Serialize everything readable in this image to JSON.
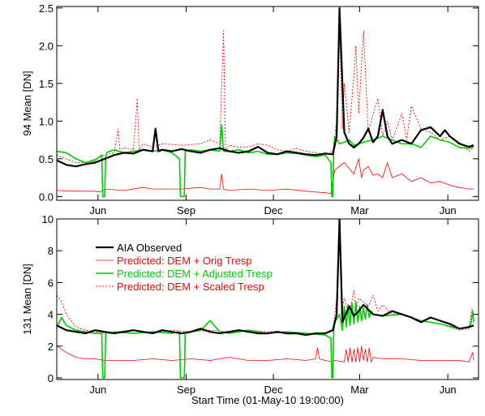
{
  "figure": {
    "xlabel": "Start Time (01-May-10 19:00:00)"
  },
  "chart_data": [
    {
      "type": "line",
      "ylabel": "94 Mean [DN]",
      "ylim": [
        -0.05,
        2.52
      ],
      "yticks": [
        0.0,
        0.5,
        1.0,
        1.5,
        2.0,
        2.5
      ],
      "ytick_labels": [
        "0.0",
        "0.5",
        "1.0",
        "1.5",
        "2.0",
        "2.5"
      ],
      "xlim": [
        0,
        440
      ],
      "xticks": [
        {
          "label": "Jun",
          "x": 43
        },
        {
          "label": "Sep",
          "x": 135
        },
        {
          "label": "Dec",
          "x": 226
        },
        {
          "label": "Mar",
          "x": 316
        },
        {
          "label": "Jun",
          "x": 408
        }
      ],
      "series": [
        {
          "name": "AIA Observed",
          "color": "#000000",
          "dash": "solid",
          "width": 2.2,
          "x": [
            0,
            10,
            20,
            30,
            40,
            50,
            60,
            70,
            80,
            90,
            100,
            103,
            106,
            110,
            120,
            130,
            140,
            150,
            160,
            170,
            180,
            190,
            200,
            210,
            220,
            230,
            240,
            250,
            260,
            270,
            280,
            288,
            292,
            295,
            300,
            305,
            310,
            315,
            320,
            325,
            330,
            335,
            340,
            345,
            350,
            360,
            370,
            380,
            390,
            400,
            405,
            410,
            420,
            430,
            435
          ],
          "y": [
            0.48,
            0.42,
            0.4,
            0.43,
            0.45,
            0.5,
            0.55,
            0.58,
            0.57,
            0.62,
            0.6,
            0.9,
            0.6,
            0.62,
            0.6,
            0.63,
            0.6,
            0.58,
            0.62,
            0.64,
            0.6,
            0.58,
            0.6,
            0.66,
            0.58,
            0.56,
            0.6,
            0.58,
            0.56,
            0.55,
            0.57,
            0.56,
            0.8,
            2.5,
            0.85,
            0.7,
            0.65,
            0.7,
            0.78,
            0.9,
            0.72,
            0.8,
            1.15,
            0.8,
            0.7,
            0.75,
            0.7,
            0.88,
            0.92,
            0.8,
            0.88,
            0.8,
            0.7,
            0.66,
            0.68
          ]
        },
        {
          "name": "Predicted: DEM + Orig Tresp",
          "color": "#ff0000",
          "dash": "solid",
          "width": 0.8,
          "x": [
            0,
            20,
            40,
            45,
            50,
            70,
            90,
            100,
            110,
            130,
            150,
            160,
            170,
            172,
            174,
            180,
            200,
            220,
            240,
            260,
            280,
            286,
            290,
            300,
            310,
            315,
            318,
            320,
            325,
            330,
            335,
            340,
            345,
            350,
            360,
            370,
            380,
            390,
            400,
            410,
            420,
            430,
            435
          ],
          "y": [
            0.08,
            0.07,
            0.07,
            0.06,
            0.1,
            0.08,
            0.12,
            0.1,
            0.1,
            0.1,
            0.12,
            0.1,
            0.1,
            0.3,
            0.1,
            0.08,
            0.1,
            0.08,
            0.1,
            0.07,
            0.05,
            0.04,
            0.35,
            0.45,
            0.3,
            0.5,
            0.25,
            0.35,
            0.4,
            0.28,
            0.3,
            0.25,
            0.45,
            0.25,
            0.3,
            0.2,
            0.25,
            0.18,
            0.2,
            0.15,
            0.12,
            0.1,
            0.1
          ]
        },
        {
          "name": "Predicted: DEM + Adjusted Tresp",
          "color": "#00cc00",
          "dash": "solid",
          "width": 1.6,
          "x": [
            0,
            10,
            20,
            30,
            40,
            47,
            48,
            50,
            51,
            52,
            55,
            60,
            70,
            80,
            90,
            100,
            110,
            120,
            128,
            129,
            130,
            131,
            132,
            133,
            134,
            140,
            150,
            160,
            170,
            172,
            174,
            180,
            190,
            200,
            210,
            220,
            230,
            240,
            250,
            260,
            270,
            280,
            286,
            287,
            288,
            289,
            290,
            295,
            300,
            305,
            310,
            315,
            320,
            330,
            340,
            350,
            360,
            370,
            380,
            390,
            400,
            410,
            420,
            430,
            435
          ],
          "y": [
            0.6,
            0.58,
            0.5,
            0.45,
            0.48,
            0.55,
            0.0,
            0.0,
            0.52,
            0.58,
            0.6,
            0.62,
            0.58,
            0.6,
            0.62,
            0.6,
            0.62,
            0.58,
            0.5,
            0.0,
            0.0,
            0.0,
            0.0,
            0.0,
            0.6,
            0.62,
            0.6,
            0.62,
            0.6,
            0.95,
            0.6,
            0.6,
            0.62,
            0.58,
            0.6,
            0.56,
            0.56,
            0.58,
            0.57,
            0.55,
            0.53,
            0.55,
            0.45,
            0.0,
            0.0,
            0.62,
            0.8,
            0.7,
            0.72,
            0.75,
            0.68,
            0.7,
            0.72,
            0.75,
            0.8,
            0.75,
            0.7,
            0.7,
            0.65,
            0.8,
            0.75,
            0.72,
            0.65,
            0.64,
            0.66
          ]
        },
        {
          "name": "Predicted: DEM + Scaled Tresp",
          "color": "#ff0000",
          "dash": "2,2",
          "width": 0.9,
          "x": [
            0,
            10,
            20,
            30,
            40,
            50,
            60,
            64,
            66,
            70,
            80,
            84,
            86,
            90,
            100,
            110,
            130,
            150,
            160,
            170,
            174,
            176,
            180,
            190,
            200,
            210,
            220,
            230,
            240,
            250,
            260,
            270,
            280,
            288,
            292,
            295,
            298,
            300,
            305,
            310,
            312,
            315,
            320,
            325,
            330,
            335,
            340,
            345,
            350,
            360,
            365,
            370,
            380,
            390,
            400,
            410,
            420,
            430,
            435
          ],
          "y": [
            0.55,
            0.5,
            0.45,
            0.45,
            0.5,
            0.55,
            0.58,
            0.9,
            0.6,
            0.65,
            0.62,
            1.3,
            0.62,
            0.7,
            0.65,
            0.7,
            0.68,
            0.7,
            0.75,
            0.7,
            2.2,
            0.6,
            0.68,
            0.65,
            0.66,
            0.7,
            0.68,
            0.62,
            0.6,
            0.64,
            0.6,
            0.58,
            0.55,
            0.6,
            1.0,
            2.3,
            0.9,
            1.5,
            0.85,
            1.6,
            2.0,
            1.1,
            2.2,
            0.85,
            1.1,
            1.3,
            0.8,
            1.0,
            0.75,
            1.1,
            0.75,
            1.2,
            0.9,
            0.85,
            0.75,
            0.8,
            0.72,
            0.6,
            0.65
          ]
        }
      ]
    },
    {
      "type": "line",
      "ylabel": "131 Mean [DN]",
      "ylim": [
        -0.1,
        10.0
      ],
      "yticks": [
        0,
        2,
        4,
        6,
        8,
        10
      ],
      "ytick_labels": [
        "0",
        "2",
        "4",
        "6",
        "8",
        "10"
      ],
      "xlim": [
        0,
        440
      ],
      "xticks": [
        {
          "label": "Jun",
          "x": 43
        },
        {
          "label": "Sep",
          "x": 135
        },
        {
          "label": "Dec",
          "x": 226
        },
        {
          "label": "Mar",
          "x": 316
        },
        {
          "label": "Jun",
          "x": 408
        }
      ],
      "legend": {
        "placement": "upper-left"
      },
      "series": [
        {
          "name": "AIA Observed",
          "color": "#000000",
          "dash": "solid",
          "width": 2.2,
          "x": [
            0,
            10,
            20,
            30,
            40,
            50,
            60,
            70,
            80,
            90,
            100,
            110,
            120,
            130,
            140,
            150,
            160,
            170,
            180,
            190,
            200,
            210,
            220,
            230,
            240,
            250,
            260,
            270,
            280,
            288,
            292,
            295,
            298,
            300,
            305,
            310,
            315,
            320,
            330,
            340,
            350,
            360,
            370,
            380,
            390,
            400,
            410,
            420,
            430,
            435
          ],
          "y": [
            3.3,
            3.0,
            2.9,
            2.8,
            3.0,
            2.9,
            2.8,
            2.9,
            3.0,
            2.9,
            2.8,
            3.0,
            2.9,
            2.8,
            2.9,
            3.1,
            2.9,
            2.8,
            2.9,
            3.0,
            2.9,
            2.8,
            2.8,
            2.9,
            2.8,
            2.8,
            2.7,
            2.8,
            2.8,
            3.0,
            4.0,
            10.0,
            3.5,
            3.8,
            4.5,
            3.9,
            4.2,
            4.6,
            4.0,
            3.9,
            4.2,
            4.0,
            3.8,
            3.5,
            3.8,
            3.6,
            3.4,
            3.1,
            3.2,
            3.3
          ]
        },
        {
          "name": "Predicted: DEM + Orig Tresp",
          "color": "#ff0000",
          "dash": "solid",
          "width": 0.8,
          "x": [
            0,
            5,
            10,
            20,
            30,
            40,
            50,
            60,
            80,
            100,
            120,
            140,
            160,
            180,
            200,
            220,
            240,
            260,
            270,
            272,
            274,
            280,
            288,
            290,
            300,
            302,
            304,
            306,
            308,
            310,
            312,
            314,
            316,
            318,
            320,
            322,
            324,
            326,
            328,
            330,
            340,
            360,
            380,
            400,
            420,
            430,
            434,
            435
          ],
          "y": [
            2.0,
            1.8,
            1.6,
            1.3,
            1.2,
            1.2,
            1.1,
            1.1,
            1.1,
            1.2,
            1.1,
            1.2,
            1.1,
            1.3,
            1.1,
            1.1,
            1.2,
            1.1,
            1.2,
            1.9,
            1.2,
            1.1,
            1.0,
            1.1,
            1.0,
            1.8,
            1.0,
            1.9,
            1.0,
            1.8,
            1.0,
            1.9,
            1.0,
            2.0,
            1.1,
            1.8,
            1.0,
            1.9,
            1.0,
            1.3,
            1.2,
            1.2,
            1.1,
            1.1,
            1.1,
            1.0,
            1.6,
            1.1
          ]
        },
        {
          "name": "Predicted: DEM + Adjusted Tresp",
          "color": "#00cc00",
          "dash": "solid",
          "width": 1.6,
          "x": [
            0,
            5,
            10,
            20,
            30,
            40,
            47,
            48,
            50,
            51,
            52,
            55,
            60,
            80,
            100,
            120,
            128,
            129,
            130,
            131,
            132,
            133,
            134,
            140,
            150,
            160,
            170,
            180,
            200,
            220,
            240,
            260,
            280,
            286,
            287,
            288,
            289,
            290,
            295,
            298,
            300,
            302,
            304,
            306,
            308,
            310,
            312,
            314,
            316,
            318,
            320,
            322,
            324,
            326,
            328,
            330,
            340,
            360,
            380,
            400,
            420,
            430,
            432,
            434,
            435
          ],
          "y": [
            3.2,
            3.8,
            3.3,
            3.0,
            2.9,
            2.8,
            2.8,
            0.0,
            0.0,
            2.8,
            2.9,
            2.8,
            2.9,
            2.8,
            2.9,
            2.8,
            2.9,
            0.0,
            0.0,
            0.0,
            0.0,
            0.0,
            2.8,
            2.9,
            3.0,
            3.6,
            2.9,
            2.8,
            3.0,
            2.8,
            2.9,
            2.8,
            2.7,
            2.5,
            0.0,
            0.0,
            3.0,
            3.5,
            4.0,
            3.0,
            4.5,
            3.2,
            4.6,
            3.3,
            4.7,
            3.4,
            4.8,
            3.5,
            4.5,
            3.6,
            4.4,
            3.7,
            4.6,
            3.8,
            4.2,
            4.0,
            3.9,
            4.0,
            3.6,
            3.4,
            3.1,
            3.2,
            3.4,
            4.2,
            3.5
          ]
        },
        {
          "name": "Predicted: DEM + Scaled Tresp",
          "color": "#ff0000",
          "dash": "2,2",
          "width": 0.9,
          "x": [
            0,
            5,
            10,
            20,
            30,
            40,
            50,
            60,
            80,
            100,
            120,
            140,
            160,
            180,
            200,
            220,
            240,
            260,
            280,
            288,
            292,
            295,
            298,
            300,
            305,
            310,
            312,
            315,
            320,
            325,
            330,
            335,
            340,
            350,
            360,
            370,
            380,
            390,
            400,
            410,
            420,
            430,
            433,
            435
          ],
          "y": [
            5.2,
            4.8,
            4.0,
            3.2,
            3.0,
            2.9,
            2.8,
            2.9,
            3.0,
            2.8,
            3.0,
            2.9,
            3.0,
            2.9,
            3.0,
            2.9,
            2.9,
            2.8,
            2.8,
            3.0,
            5.0,
            9.5,
            4.5,
            5.0,
            4.0,
            5.5,
            4.2,
            5.0,
            4.8,
            4.5,
            5.2,
            4.2,
            4.6,
            4.0,
            4.0,
            3.8,
            3.6,
            3.5,
            3.4,
            3.2,
            3.0,
            3.1,
            4.3,
            4.4
          ]
        }
      ]
    }
  ]
}
